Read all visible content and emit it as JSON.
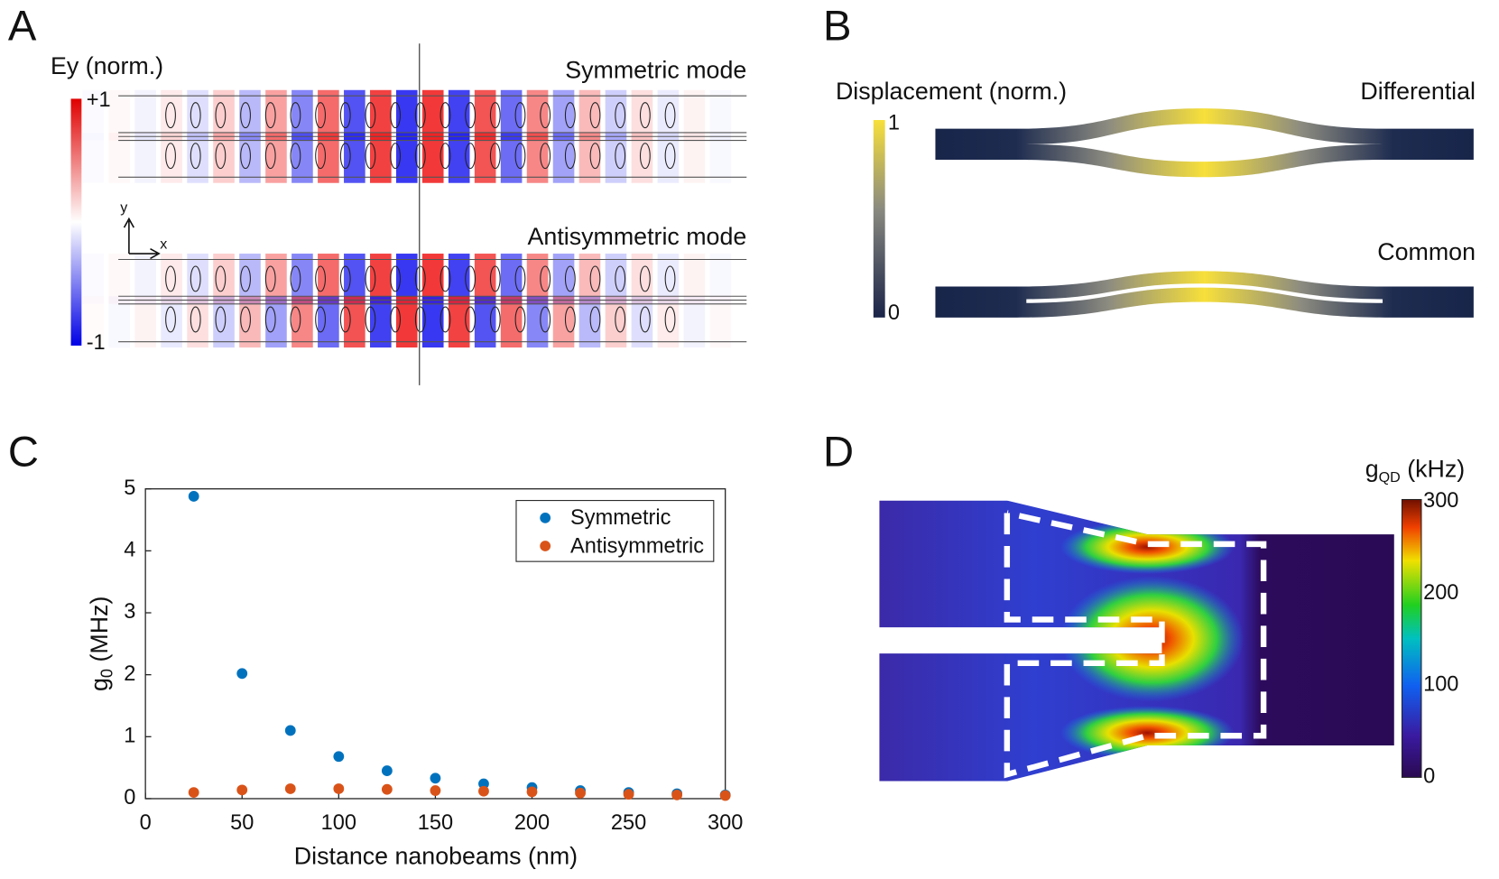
{
  "panels": {
    "A": {
      "letter": "A",
      "colorbar_label": "Ey (norm.)",
      "colorbar_lim": [
        -1,
        1
      ],
      "colorbar_ticks": [
        {
          "value": 1,
          "label": "+1"
        },
        {
          "value": -1,
          "label": "-1"
        }
      ],
      "modes": [
        "Symmetric mode",
        "Antisymmetric mode"
      ],
      "axis_labels": [
        "y",
        "x"
      ]
    },
    "B": {
      "letter": "B",
      "colorbar_label": "Displacement (norm.)",
      "colorbar_lim": [
        0,
        1
      ],
      "colorbar_ticks": [
        1,
        0
      ],
      "modes": [
        "Differential",
        "Common"
      ]
    },
    "C": {
      "letter": "C"
    },
    "D": {
      "letter": "D",
      "colorbar_label": [
        "g",
        "QD",
        " (kHz)"
      ],
      "colorbar_lim": [
        0,
        300
      ],
      "colorbar_ticks": [
        0,
        100,
        200,
        300
      ]
    }
  },
  "chart_data": {
    "type": "scatter",
    "xlabel": "Distance nanobeams (nm)",
    "ylabel": [
      "g",
      "0",
      " (MHz)"
    ],
    "x": [
      25,
      50,
      75,
      100,
      125,
      150,
      175,
      200,
      225,
      250,
      275,
      300
    ],
    "series": [
      {
        "name": "Symmetric",
        "color": "#0072BD",
        "values": [
          4.88,
          2.02,
          1.1,
          0.68,
          0.45,
          0.33,
          0.24,
          0.18,
          0.13,
          0.1,
          0.08,
          0.06
        ]
      },
      {
        "name": "Antisymmetric",
        "color": "#D95319",
        "values": [
          0.1,
          0.14,
          0.16,
          0.16,
          0.15,
          0.13,
          0.12,
          0.11,
          0.09,
          0.07,
          0.06,
          0.05
        ]
      }
    ],
    "xlim": [
      0,
      300
    ],
    "xticks": [
      0,
      50,
      100,
      150,
      200,
      250,
      300
    ],
    "ylim": [
      0,
      5
    ],
    "yticks": [
      0,
      1,
      2,
      3,
      4,
      5
    ],
    "legend": "upper right"
  }
}
